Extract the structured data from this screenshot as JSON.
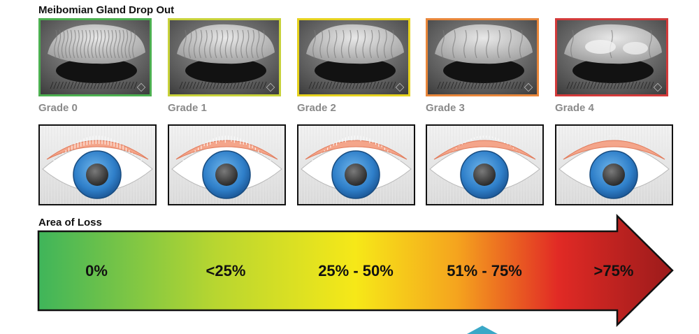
{
  "title": "Meibomian Gland Drop Out",
  "grades": [
    {
      "label": "Grade 0",
      "border_color": "#4caf50"
    },
    {
      "label": "Grade 1",
      "border_color": "#c8d23a"
    },
    {
      "label": "Grade 2",
      "border_color": "#e6d21e"
    },
    {
      "label": "Grade 3",
      "border_color": "#e8863a"
    },
    {
      "label": "Grade 4",
      "border_color": "#d23a3a"
    }
  ],
  "area_title": "Area of Loss",
  "loss_levels": [
    "0%",
    "<25%",
    "25% - 50%",
    "51% - 75%",
    ">75%"
  ],
  "gradient_colors": [
    "#3fb55a",
    "#b8d630",
    "#f6e818",
    "#f5a41e",
    "#e12a25",
    "#9b1b1b"
  ]
}
